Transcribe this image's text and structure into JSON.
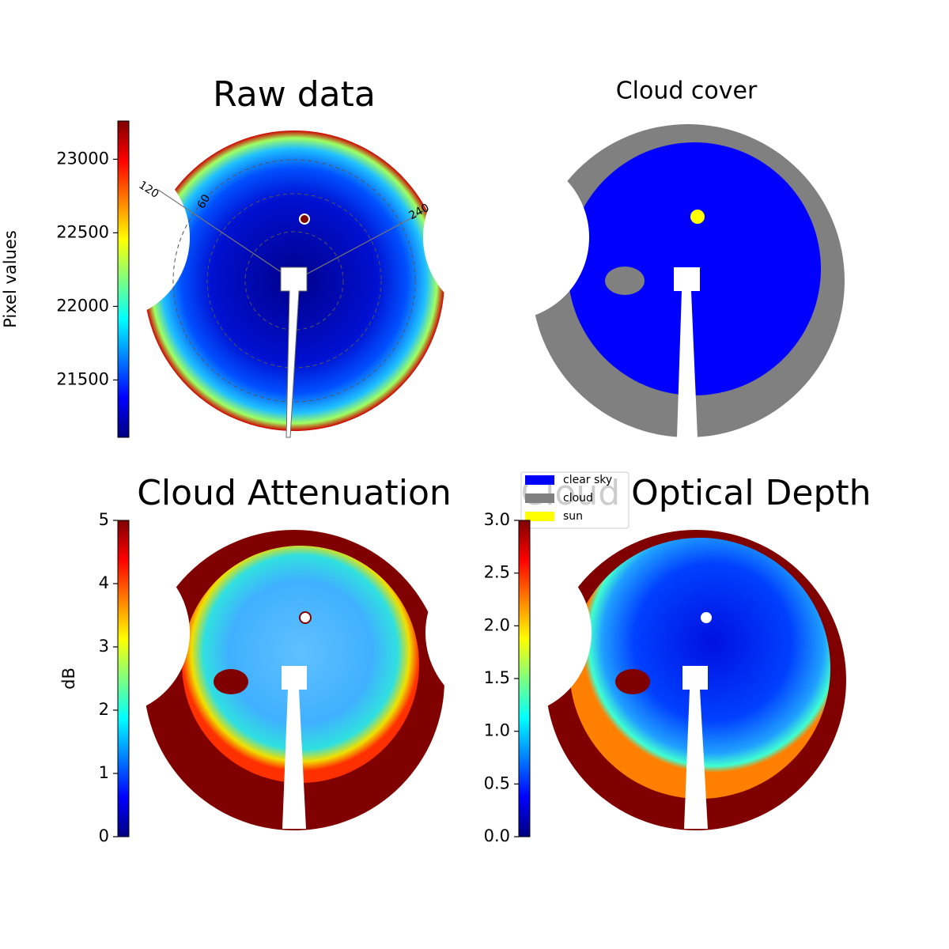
{
  "chart_data": [
    {
      "type": "image",
      "title": "Raw data",
      "colormap": "jet",
      "ylabel": "Pixel values",
      "ylim": [
        21110,
        23260
      ],
      "yticks": [
        21500,
        22000,
        22500,
        23000
      ],
      "polar_labels": [
        "120",
        "60",
        "240"
      ]
    },
    {
      "type": "image",
      "title": "Cloud cover",
      "legend": [
        {
          "name": "clear sky",
          "color": "#0000ff"
        },
        {
          "name": "cloud",
          "color": "#808080"
        },
        {
          "name": "sun",
          "color": "#ffff00"
        }
      ]
    },
    {
      "type": "image",
      "title": "Cloud Attenuation",
      "colormap": "jet",
      "ylabel": "dB",
      "ylim": [
        0,
        5
      ],
      "yticks": [
        0,
        1,
        2,
        3,
        4,
        5
      ]
    },
    {
      "type": "image",
      "title": "Cloud Optical Depth",
      "colormap": "jet",
      "ylim": [
        0,
        3
      ],
      "yticks": [
        {
          "value": 0,
          "label": "0.0"
        },
        {
          "value": 0.5,
          "label": "0.5"
        },
        {
          "value": 1,
          "label": "1.0"
        },
        {
          "value": 1.5,
          "label": "1.5"
        },
        {
          "value": 2,
          "label": "2.0"
        },
        {
          "value": 2.5,
          "label": "2.5"
        },
        {
          "value": 3,
          "label": "3.0"
        }
      ]
    }
  ]
}
